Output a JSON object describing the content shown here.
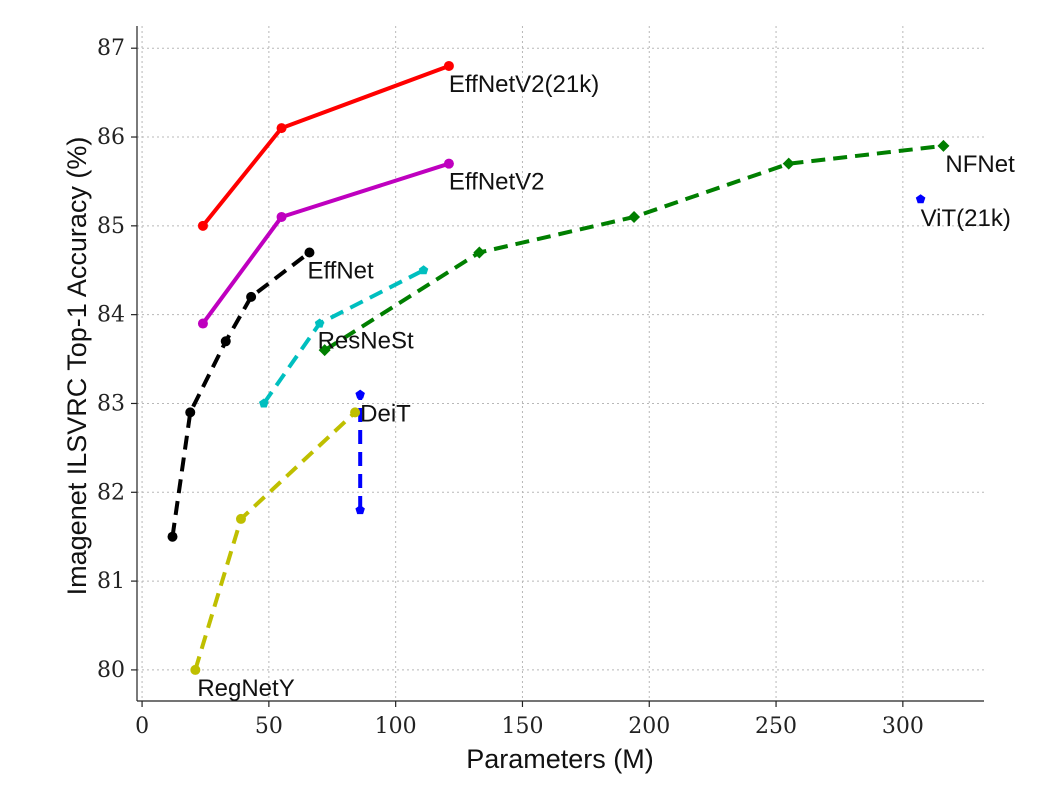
{
  "chart_data": {
    "type": "line",
    "title": "",
    "xlabel": "Parameters (M)",
    "ylabel": "Imagenet ILSVRC Top-1 Accuracy (%)",
    "xlim": [
      -2,
      332
    ],
    "ylim": [
      79.65,
      87.25
    ],
    "xticks": [
      0,
      50,
      100,
      150,
      200,
      250,
      300
    ],
    "yticks": [
      80,
      81,
      82,
      83,
      84,
      85,
      86,
      87
    ],
    "grid": true,
    "legend": "none",
    "series": [
      {
        "name": "EffNetV2(21k)",
        "color": "#ff0000",
        "line": "solid",
        "marker": "circle",
        "x": [
          24,
          55,
          121
        ],
        "y": [
          85.0,
          86.1,
          86.8
        ]
      },
      {
        "name": "EffNetV2",
        "color": "#bf00bf",
        "line": "solid",
        "marker": "circle",
        "x": [
          24,
          55,
          121
        ],
        "y": [
          83.9,
          85.1,
          85.7
        ]
      },
      {
        "name": "EffNet",
        "color": "#000000",
        "line": "dashed",
        "marker": "circle",
        "x": [
          12,
          19,
          33,
          43,
          66
        ],
        "y": [
          81.5,
          82.9,
          83.7,
          84.2,
          84.7
        ]
      },
      {
        "name": "ResNeSt",
        "color": "#00bfbf",
        "line": "dashed",
        "marker": "pentagon",
        "x": [
          48,
          70,
          111
        ],
        "y": [
          83.0,
          83.9,
          84.5
        ]
      },
      {
        "name": "NFNet",
        "color": "#007f00",
        "line": "dashed",
        "marker": "diamond",
        "x": [
          72,
          133,
          194,
          255,
          316
        ],
        "y": [
          83.6,
          84.7,
          85.1,
          85.7,
          85.9
        ]
      },
      {
        "name": "DeiT",
        "color": "#0000ff",
        "line": "dashed",
        "marker": "pentagon",
        "x": [
          86,
          86
        ],
        "y": [
          81.8,
          83.1
        ]
      },
      {
        "name": "ViT(21k)",
        "color": "#0000ff",
        "line": "none",
        "marker": "pentagon",
        "x": [
          307
        ],
        "y": [
          85.3
        ]
      },
      {
        "name": "RegNetY",
        "color": "#bfbf00",
        "line": "dashed",
        "marker": "circle",
        "x": [
          21,
          39,
          84
        ],
        "y": [
          80.0,
          81.7,
          82.9
        ]
      }
    ]
  }
}
